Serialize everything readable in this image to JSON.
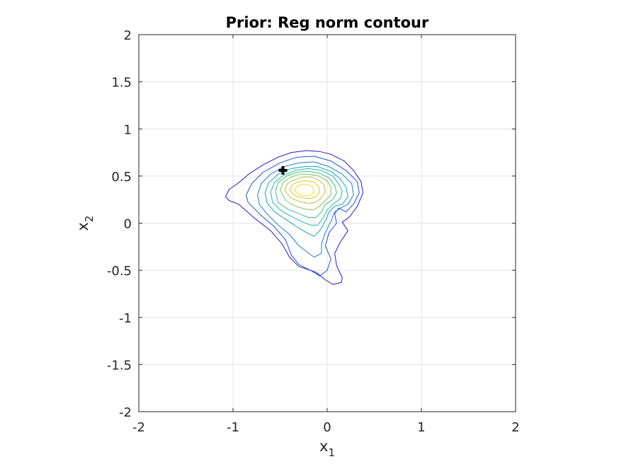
{
  "chart_data": {
    "type": "contour",
    "title": "Prior: Reg norm contour",
    "xlabel": {
      "base": "x",
      "sub": "1"
    },
    "ylabel": {
      "base": "x",
      "sub": "2"
    },
    "xlim": [
      -2,
      2
    ],
    "ylim": [
      -2,
      2
    ],
    "xticks": [
      -2,
      -1,
      0,
      1,
      2
    ],
    "xtick_labels": [
      "-2",
      "-1",
      "0",
      "1",
      "2"
    ],
    "yticks": [
      -2,
      -1.5,
      -1,
      -0.5,
      0,
      0.5,
      1,
      1.5,
      2
    ],
    "ytick_labels": [
      "-2",
      "-1.5",
      "-1",
      "-0.5",
      "0",
      "0.5",
      "1",
      "1.5",
      "2"
    ],
    "grid": true,
    "colormap": [
      "#2a14c8",
      "#1f4fd8",
      "#1c7ad8",
      "#16a0c8",
      "#1fb6a8",
      "#3fc184",
      "#7cc75a",
      "#b4c43a",
      "#dcc82a",
      "#f5d81e"
    ],
    "contours": [
      {
        "level": 1,
        "points": [
          [
            -1.08,
            0.28
          ],
          [
            -1.04,
            0.36
          ],
          [
            -0.95,
            0.42
          ],
          [
            -0.82,
            0.53
          ],
          [
            -0.68,
            0.62
          ],
          [
            -0.52,
            0.7
          ],
          [
            -0.38,
            0.75
          ],
          [
            -0.22,
            0.77
          ],
          [
            -0.08,
            0.76
          ],
          [
            0.04,
            0.73
          ],
          [
            0.18,
            0.66
          ],
          [
            0.28,
            0.56
          ],
          [
            0.36,
            0.44
          ],
          [
            0.38,
            0.32
          ],
          [
            0.32,
            0.18
          ],
          [
            0.24,
            0.07
          ],
          [
            0.16,
            0.01
          ],
          [
            0.22,
            -0.08
          ],
          [
            0.14,
            -0.2
          ],
          [
            0.08,
            -0.32
          ],
          [
            0.1,
            -0.45
          ],
          [
            0.16,
            -0.58
          ],
          [
            0.15,
            -0.63
          ],
          [
            0.06,
            -0.65
          ],
          [
            -0.02,
            -0.6
          ],
          [
            -0.12,
            -0.52
          ],
          [
            -0.3,
            -0.46
          ],
          [
            -0.4,
            -0.36
          ],
          [
            -0.48,
            -0.22
          ],
          [
            -0.6,
            -0.08
          ],
          [
            -0.78,
            0.06
          ],
          [
            -0.94,
            0.2
          ],
          [
            -1.04,
            0.24
          ],
          [
            -1.08,
            0.28
          ]
        ]
      },
      {
        "level": 2,
        "points": [
          [
            -0.86,
            0.3
          ],
          [
            -0.8,
            0.42
          ],
          [
            -0.68,
            0.54
          ],
          [
            -0.5,
            0.64
          ],
          [
            -0.32,
            0.7
          ],
          [
            -0.14,
            0.71
          ],
          [
            0.04,
            0.66
          ],
          [
            0.2,
            0.56
          ],
          [
            0.32,
            0.44
          ],
          [
            0.34,
            0.32
          ],
          [
            0.28,
            0.2
          ],
          [
            0.2,
            0.12
          ],
          [
            0.12,
            0.16
          ],
          [
            0.08,
            0.1
          ],
          [
            0.1,
            0.0
          ],
          [
            0.02,
            -0.1
          ],
          [
            -0.02,
            -0.24
          ],
          [
            0.04,
            -0.38
          ],
          [
            0.0,
            -0.5
          ],
          [
            -0.08,
            -0.56
          ],
          [
            -0.18,
            -0.5
          ],
          [
            -0.3,
            -0.44
          ],
          [
            -0.38,
            -0.34
          ],
          [
            -0.44,
            -0.18
          ],
          [
            -0.56,
            -0.04
          ],
          [
            -0.72,
            0.1
          ],
          [
            -0.84,
            0.22
          ],
          [
            -0.86,
            0.3
          ]
        ]
      },
      {
        "level": 3,
        "points": [
          [
            -0.74,
            0.3
          ],
          [
            -0.7,
            0.42
          ],
          [
            -0.6,
            0.52
          ],
          [
            -0.46,
            0.6
          ],
          [
            -0.3,
            0.64
          ],
          [
            -0.14,
            0.65
          ],
          [
            0.02,
            0.6
          ],
          [
            0.16,
            0.52
          ],
          [
            0.26,
            0.42
          ],
          [
            0.28,
            0.3
          ],
          [
            0.22,
            0.2
          ],
          [
            0.14,
            0.16
          ],
          [
            0.08,
            0.12
          ],
          [
            0.04,
            0.02
          ],
          [
            -0.02,
            -0.1
          ],
          [
            -0.06,
            -0.22
          ],
          [
            -0.06,
            -0.32
          ],
          [
            -0.14,
            -0.36
          ],
          [
            -0.22,
            -0.3
          ],
          [
            -0.3,
            -0.24
          ],
          [
            -0.4,
            -0.12
          ],
          [
            -0.52,
            -0.02
          ],
          [
            -0.64,
            0.1
          ],
          [
            -0.72,
            0.2
          ],
          [
            -0.74,
            0.3
          ]
        ]
      },
      {
        "level": 4,
        "points": [
          [
            -0.66,
            0.32
          ],
          [
            -0.62,
            0.43
          ],
          [
            -0.52,
            0.52
          ],
          [
            -0.38,
            0.58
          ],
          [
            -0.24,
            0.6
          ],
          [
            -0.1,
            0.6
          ],
          [
            0.04,
            0.55
          ],
          [
            0.14,
            0.47
          ],
          [
            0.2,
            0.38
          ],
          [
            0.22,
            0.28
          ],
          [
            0.16,
            0.2
          ],
          [
            0.08,
            0.18
          ],
          [
            0.02,
            0.12
          ],
          [
            -0.02,
            0.02
          ],
          [
            -0.08,
            -0.08
          ],
          [
            -0.14,
            -0.14
          ],
          [
            -0.22,
            -0.1
          ],
          [
            -0.32,
            -0.04
          ],
          [
            -0.44,
            0.04
          ],
          [
            -0.56,
            0.12
          ],
          [
            -0.64,
            0.22
          ],
          [
            -0.66,
            0.32
          ]
        ]
      },
      {
        "level": 5,
        "points": [
          [
            -0.6,
            0.33
          ],
          [
            -0.56,
            0.43
          ],
          [
            -0.46,
            0.51
          ],
          [
            -0.34,
            0.56
          ],
          [
            -0.2,
            0.58
          ],
          [
            -0.06,
            0.56
          ],
          [
            0.06,
            0.5
          ],
          [
            0.12,
            0.42
          ],
          [
            0.16,
            0.34
          ],
          [
            0.14,
            0.26
          ],
          [
            0.06,
            0.2
          ],
          [
            0.0,
            0.14
          ],
          [
            -0.04,
            0.06
          ],
          [
            -0.1,
            -0.02
          ],
          [
            -0.18,
            -0.02
          ],
          [
            -0.28,
            0.02
          ],
          [
            -0.4,
            0.08
          ],
          [
            -0.5,
            0.14
          ],
          [
            -0.58,
            0.22
          ],
          [
            -0.6,
            0.33
          ]
        ]
      },
      {
        "level": 6,
        "points": [
          [
            -0.55,
            0.34
          ],
          [
            -0.52,
            0.43
          ],
          [
            -0.43,
            0.5
          ],
          [
            -0.32,
            0.54
          ],
          [
            -0.2,
            0.55
          ],
          [
            -0.08,
            0.53
          ],
          [
            0.02,
            0.48
          ],
          [
            0.08,
            0.4
          ],
          [
            0.1,
            0.32
          ],
          [
            0.06,
            0.25
          ],
          [
            -0.02,
            0.2
          ],
          [
            -0.06,
            0.12
          ],
          [
            -0.12,
            0.06
          ],
          [
            -0.2,
            0.06
          ],
          [
            -0.3,
            0.1
          ],
          [
            -0.42,
            0.15
          ],
          [
            -0.52,
            0.22
          ],
          [
            -0.55,
            0.34
          ]
        ]
      },
      {
        "level": 7,
        "points": [
          [
            -0.5,
            0.35
          ],
          [
            -0.47,
            0.43
          ],
          [
            -0.4,
            0.48
          ],
          [
            -0.3,
            0.52
          ],
          [
            -0.19,
            0.52
          ],
          [
            -0.09,
            0.5
          ],
          [
            0.0,
            0.45
          ],
          [
            0.04,
            0.38
          ],
          [
            0.04,
            0.3
          ],
          [
            -0.02,
            0.24
          ],
          [
            -0.08,
            0.18
          ],
          [
            -0.15,
            0.14
          ],
          [
            -0.24,
            0.15
          ],
          [
            -0.34,
            0.18
          ],
          [
            -0.44,
            0.24
          ],
          [
            -0.5,
            0.35
          ]
        ]
      },
      {
        "level": 8,
        "points": [
          [
            -0.45,
            0.35
          ],
          [
            -0.42,
            0.42
          ],
          [
            -0.35,
            0.46
          ],
          [
            -0.26,
            0.49
          ],
          [
            -0.17,
            0.49
          ],
          [
            -0.09,
            0.46
          ],
          [
            -0.03,
            0.4
          ],
          [
            -0.02,
            0.33
          ],
          [
            -0.06,
            0.27
          ],
          [
            -0.12,
            0.22
          ],
          [
            -0.2,
            0.21
          ],
          [
            -0.3,
            0.23
          ],
          [
            -0.39,
            0.27
          ],
          [
            -0.45,
            0.35
          ]
        ]
      },
      {
        "level": 9,
        "points": [
          [
            -0.4,
            0.35
          ],
          [
            -0.37,
            0.41
          ],
          [
            -0.31,
            0.44
          ],
          [
            -0.23,
            0.45
          ],
          [
            -0.15,
            0.44
          ],
          [
            -0.09,
            0.39
          ],
          [
            -0.08,
            0.33
          ],
          [
            -0.12,
            0.28
          ],
          [
            -0.18,
            0.26
          ],
          [
            -0.26,
            0.27
          ],
          [
            -0.34,
            0.29
          ],
          [
            -0.4,
            0.35
          ]
        ]
      },
      {
        "level": 10,
        "points": [
          [
            -0.35,
            0.35
          ],
          [
            -0.32,
            0.39
          ],
          [
            -0.26,
            0.41
          ],
          [
            -0.2,
            0.41
          ],
          [
            -0.15,
            0.38
          ],
          [
            -0.14,
            0.33
          ],
          [
            -0.17,
            0.3
          ],
          [
            -0.23,
            0.29
          ],
          [
            -0.3,
            0.3
          ],
          [
            -0.35,
            0.35
          ]
        ]
      }
    ],
    "marker": {
      "x": -0.47,
      "y": 0.56,
      "symbol": "plus",
      "color": "#000000"
    }
  }
}
